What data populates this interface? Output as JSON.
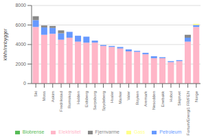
{
  "chart_data": {
    "type": "bar",
    "stacked": true,
    "ylabel": "kWh/innbygger",
    "categories": [
      "Ski",
      "Moss",
      "Askim",
      "Fredrikstad",
      "Romskog",
      "Halden",
      "Eidsberg",
      "Sarpsborg",
      "Spydeberg",
      "Hvaler",
      "Marker",
      "Valer",
      "Royken",
      "Aremark",
      "Nesodden",
      "Enebakk",
      "Hobol",
      "Skiptvet",
      "Fortum/Energi1 FR/FEN",
      "Norge"
    ],
    "series": [
      {
        "name": "Elektrisitet",
        "color": "#FFB6C8",
        "values": [
          5800,
          5000,
          5100,
          4500,
          4700,
          4300,
          4200,
          4200,
          3850,
          3750,
          3600,
          3300,
          3250,
          3000,
          2600,
          2600,
          2200,
          2300,
          4300,
          5800
        ]
      },
      {
        "name": "Petroleum",
        "color": "#6699FF",
        "values": [
          700,
          750,
          600,
          650,
          600,
          600,
          600,
          200,
          100,
          100,
          150,
          200,
          100,
          150,
          200,
          100,
          100,
          100,
          400,
          200
        ]
      },
      {
        "name": "Gass",
        "color": "#FFFF88",
        "values": [
          0,
          0,
          0,
          0,
          0,
          0,
          0,
          0,
          0,
          0,
          0,
          0,
          0,
          0,
          0,
          0,
          0,
          0,
          0,
          120
        ]
      },
      {
        "name": "Biobrense",
        "color": "#55BB55",
        "values": [
          0,
          0,
          0,
          0,
          0,
          0,
          0,
          0,
          0,
          0,
          0,
          0,
          0,
          0,
          0,
          0,
          0,
          0,
          0,
          0
        ]
      },
      {
        "name": "Fjernvarme",
        "color": "#888888",
        "values": [
          400,
          200,
          200,
          300,
          0,
          0,
          0,
          0,
          0,
          0,
          0,
          0,
          0,
          0,
          0,
          0,
          0,
          0,
          300,
          0
        ]
      }
    ],
    "ylim": [
      0,
      8000
    ],
    "yticks": [
      0,
      2000,
      4000,
      6000,
      8000
    ],
    "grid": true,
    "legend": "bottom"
  }
}
